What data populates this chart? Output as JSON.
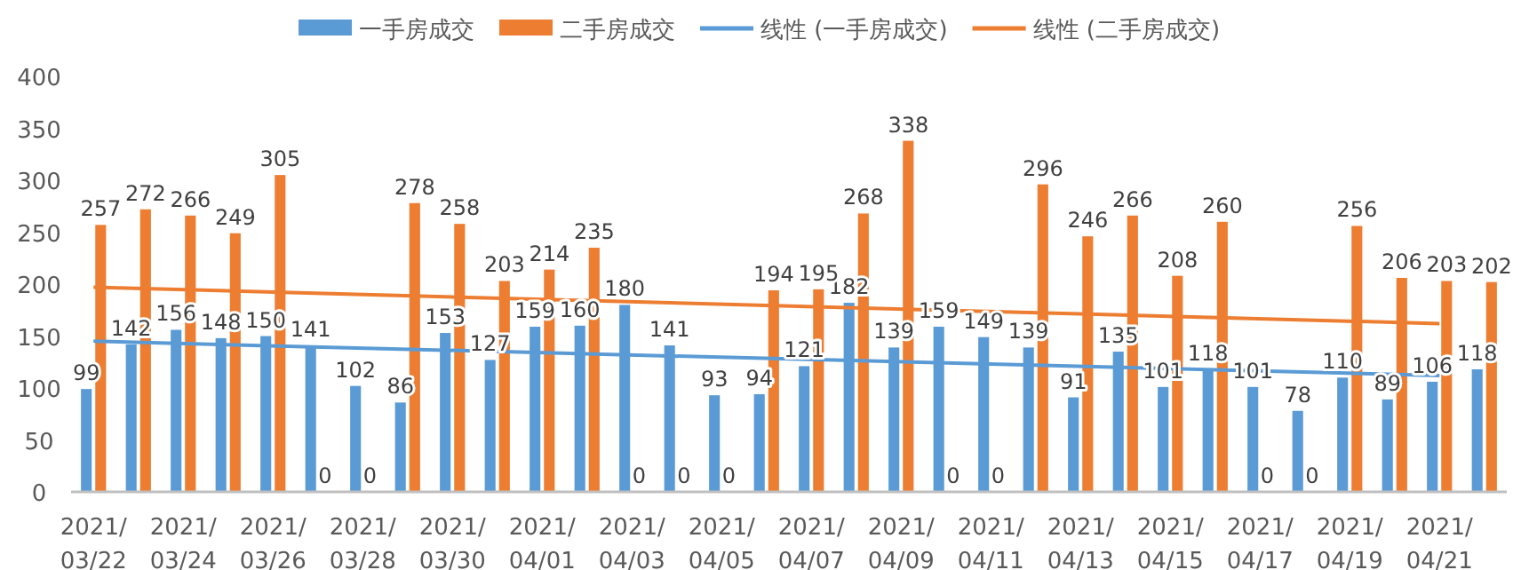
{
  "chart_data": {
    "type": "bar",
    "categories": [
      "2021/03/22",
      null,
      "2021/03/24",
      null,
      "2021/03/26",
      null,
      "2021/03/28",
      null,
      "2021/03/30",
      null,
      "2021/04/01",
      null,
      "2021/04/03",
      null,
      "2021/04/05",
      null,
      "2021/04/07",
      null,
      "2021/04/09",
      null,
      "2021/04/11",
      null,
      "2021/04/13",
      null,
      "2021/04/15",
      null,
      "2021/04/17",
      null,
      "2021/04/19",
      null,
      "2021/04/21",
      null
    ],
    "series": [
      {
        "name": "一手房成交",
        "color": "#5b9bd5",
        "values": [
          99,
          142,
          156,
          148,
          150,
          141,
          102,
          86,
          153,
          127,
          159,
          160,
          180,
          141,
          93,
          94,
          121,
          182,
          139,
          159,
          149,
          139,
          91,
          135,
          101,
          118,
          101,
          78,
          110,
          89,
          106,
          118
        ],
        "value_labels": [
          "99",
          "142",
          "156",
          "148",
          "150",
          "141",
          "102",
          "86",
          "153",
          "127",
          "159",
          "160",
          "180",
          "141",
          "93",
          "94",
          "121",
          "182",
          "139",
          "159",
          "149",
          "139",
          "91",
          "135",
          "101",
          "118",
          "101",
          "78",
          "110",
          "89",
          "106",
          "118"
        ]
      },
      {
        "name": "二手房成交",
        "color": "#ed7d31",
        "values": [
          257,
          272,
          266,
          249,
          305,
          0,
          0,
          278,
          258,
          203,
          214,
          235,
          0,
          0,
          0,
          194,
          195,
          268,
          338,
          0,
          0,
          296,
          246,
          266,
          208,
          260,
          0,
          0,
          256,
          206,
          203,
          202
        ],
        "value_labels": [
          "257",
          "272",
          "266",
          "249",
          "305",
          "0",
          "0",
          "278",
          "258",
          "203",
          "214",
          "235",
          "0",
          "0",
          "0",
          "194",
          "195",
          "268",
          "338",
          "0",
          "0",
          "296",
          "246",
          "266",
          "208",
          "260",
          "0",
          "0",
          "256",
          "206",
          "203",
          "202"
        ]
      },
      {
        "name": "线性 (一手房成交)",
        "type": "line",
        "color": "#5b9bd5",
        "x": [
          "2021/03/22",
          "2021/04/21"
        ],
        "values": [
          145,
          112
        ]
      },
      {
        "name": "线性 (二手房成交)",
        "type": "line",
        "color": "#ed7d31",
        "x": [
          "2021/03/22",
          "2021/04/21"
        ],
        "values": [
          197,
          162
        ]
      }
    ],
    "ylim": [
      0,
      400
    ],
    "yticks": [
      0,
      50,
      100,
      150,
      200,
      250,
      300,
      350,
      400
    ],
    "legend": "top"
  }
}
